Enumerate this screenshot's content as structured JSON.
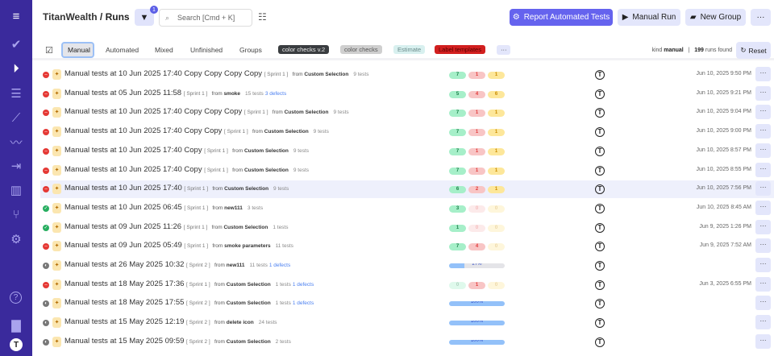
{
  "sidebar": {
    "icons": [
      "menu-icon",
      "check-icon",
      "play-circle-icon",
      "checklist-icon",
      "steps-icon",
      "pulse-icon",
      "import-icon",
      "analytics-icon",
      "branch-icon",
      "gear-icon",
      "help-icon",
      "folder-icon",
      "profile-avatar-icon"
    ],
    "accent": "#3a2a9c"
  },
  "header": {
    "workspace": "TitanWealth",
    "separator": "/",
    "page": "Runs",
    "filter_count": "1",
    "search_placeholder": "Search [Cmd + K]",
    "report_label": "Report Automated Tests",
    "manual_run_label": "Manual Run",
    "new_group_label": "New Group",
    "more_label": "···"
  },
  "tabs": [
    {
      "label": "Manual",
      "active": true
    },
    {
      "label": "Automated"
    },
    {
      "label": "Mixed"
    },
    {
      "label": "Unfinished"
    },
    {
      "label": "Groups"
    }
  ],
  "labels": [
    {
      "text": "color checks v.2",
      "bg": "#3a3d40",
      "fg": "#eee"
    },
    {
      "text": "color checks",
      "bg": "#cfcfcf",
      "fg": "#555"
    },
    {
      "text": "Estimate",
      "bg": "#d8f0ef",
      "fg": "#6a8a8a"
    },
    {
      "text": "Label templates",
      "bg": "#d21f1f",
      "fg": "#5a0000"
    }
  ],
  "labels_more": "···",
  "summary": {
    "kind_prefix": "kind",
    "kind": "manual",
    "sep": "|",
    "count": "199",
    "count_suffix": "runs found",
    "reset_label": "Reset"
  },
  "avatar_letter": "T",
  "runs": [
    {
      "status": "failed",
      "title": "Manual tests at 10 Jun 2025 17:40 Copy Copy Copy Copy",
      "sprint": "[ Sprint 1 ]",
      "from": "from",
      "source": "Custom Selection",
      "tests": "9 tests",
      "defects": "",
      "passed": "7",
      "failed": "1",
      "skipped": "1",
      "date": "Jun 10, 2025 9:50 PM"
    },
    {
      "status": "failed",
      "title": "Manual tests at 05 Jun 2025 11:58",
      "sprint": "[ Sprint 1 ]",
      "from": "from",
      "source": "smoke",
      "tests": "15 tests",
      "defects": "3 defects",
      "passed": "5",
      "failed": "4",
      "skipped": "6",
      "date": "Jun 10, 2025 9:21 PM"
    },
    {
      "status": "failed",
      "title": "Manual tests at 10 Jun 2025 17:40 Copy Copy Copy",
      "sprint": "[ Sprint 1 ]",
      "from": "from",
      "source": "Custom Selection",
      "tests": "9 tests",
      "defects": "",
      "passed": "7",
      "failed": "1",
      "skipped": "1",
      "date": "Jun 10, 2025 9:04 PM"
    },
    {
      "status": "failed",
      "title": "Manual tests at 10 Jun 2025 17:40 Copy Copy",
      "sprint": "[ Sprint 1 ]",
      "from": "from",
      "source": "Custom Selection",
      "tests": "9 tests",
      "defects": "",
      "passed": "7",
      "failed": "1",
      "skipped": "1",
      "date": "Jun 10, 2025 9:00 PM"
    },
    {
      "status": "failed",
      "title": "Manual tests at 10 Jun 2025 17:40 Copy",
      "sprint": "[ Sprint 1 ]",
      "from": "from",
      "source": "Custom Selection",
      "tests": "9 tests",
      "defects": "",
      "passed": "7",
      "failed": "1",
      "skipped": "1",
      "date": "Jun 10, 2025 8:57 PM"
    },
    {
      "status": "failed",
      "title": "Manual tests at 10 Jun 2025 17:40 Copy",
      "sprint": "[ Sprint 1 ]",
      "from": "from",
      "source": "Custom Selection",
      "tests": "9 tests",
      "defects": "",
      "passed": "7",
      "failed": "1",
      "skipped": "1",
      "date": "Jun 10, 2025 8:55 PM"
    },
    {
      "status": "failed",
      "title": "Manual tests at 10 Jun 2025 17:40",
      "sprint": "[ Sprint 1 ]",
      "from": "from",
      "source": "Custom Selection",
      "tests": "9 tests",
      "defects": "",
      "passed": "6",
      "failed": "2",
      "skipped": "1",
      "date": "Jun 10, 2025 7:56 PM",
      "hovered": true
    },
    {
      "status": "passed",
      "title": "Manual tests at 10 Jun 2025 06:45",
      "sprint": "[ Sprint 1 ]",
      "from": "from",
      "source": "new111",
      "tests": "3 tests",
      "defects": "",
      "passed": "3",
      "failed": "0",
      "skipped": "0",
      "date": "Jun 10, 2025 8:45 AM"
    },
    {
      "status": "passed",
      "title": "Manual tests at 09 Jun 2025 11:26",
      "sprint": "[ Sprint 1 ]",
      "from": "from",
      "source": "Custom Selection",
      "tests": "1 tests",
      "defects": "",
      "passed": "1",
      "failed": "0",
      "skipped": "0",
      "date": "Jun 9, 2025 1:26 PM"
    },
    {
      "status": "failed",
      "title": "Manual tests at 09 Jun 2025 05:49",
      "sprint": "[ Sprint 1 ]",
      "from": "from",
      "source": "smoke parameters",
      "tests": "11 tests",
      "defects": "",
      "passed": "7",
      "failed": "4",
      "skipped": "0",
      "date": "Jun 9, 2025 7:52 AM"
    },
    {
      "status": "in-progress",
      "title": "Manual tests at 26 May 2025 10:32",
      "sprint": "[ Sprint 2 ]",
      "from": "from",
      "source": "new111",
      "tests": "11 tests",
      "defects": "1 defects",
      "progress": "27%",
      "date": ""
    },
    {
      "status": "failed",
      "title": "Manual tests at 18 May 2025 17:36",
      "sprint": "[ Sprint 1 ]",
      "from": "from",
      "source": "Custom Selection",
      "tests": "1 tests",
      "defects": "1 defects",
      "passed": "0",
      "failed": "1",
      "skipped": "0",
      "date": "Jun 3, 2025 6:55 PM"
    },
    {
      "status": "in-progress",
      "title": "Manual tests at 18 May 2025 17:55",
      "sprint": "[ Sprint 2 ]",
      "from": "from",
      "source": "Custom Selection",
      "tests": "1 tests",
      "defects": "1 defects",
      "progress": "100%",
      "date": ""
    },
    {
      "status": "in-progress",
      "title": "Manual tests at 15 May 2025 12:19",
      "sprint": "[ Sprint 2 ]",
      "from": "from",
      "source": "delete icon",
      "tests": "24 tests",
      "defects": "",
      "progress": "100%",
      "date": ""
    },
    {
      "status": "in-progress",
      "title": "Manual tests at 15 May 2025 09:59",
      "sprint": "[ Sprint 2 ]",
      "from": "from",
      "source": "Custom Selection",
      "tests": "2 tests",
      "defects": "",
      "progress": "100%",
      "date": ""
    }
  ],
  "row_more": "···"
}
